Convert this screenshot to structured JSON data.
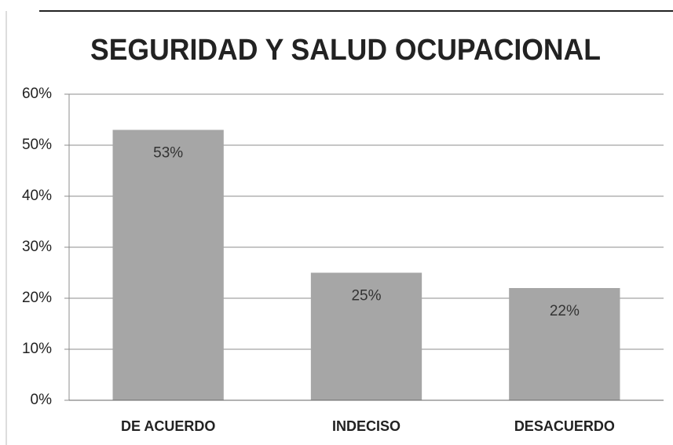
{
  "chart_data": {
    "type": "bar",
    "title": "SEGURIDAD Y SALUD OCUPACIONAL",
    "categories": [
      "DE ACUERDO",
      "INDECISO",
      "DESACUERDO"
    ],
    "values": [
      53,
      25,
      22
    ],
    "value_labels": [
      "53%",
      "25%",
      "22%"
    ],
    "color": "#a6a6a6",
    "ylim": [
      0,
      60
    ],
    "yticks": [
      {
        "value": 0,
        "label": "0%"
      },
      {
        "value": 10,
        "label": "10%"
      },
      {
        "value": 20,
        "label": "20%"
      },
      {
        "value": 30,
        "label": "30%"
      },
      {
        "value": 40,
        "label": "40%"
      },
      {
        "value": 50,
        "label": "50%"
      },
      {
        "value": 60,
        "label": "60%"
      }
    ],
    "grid": true
  }
}
